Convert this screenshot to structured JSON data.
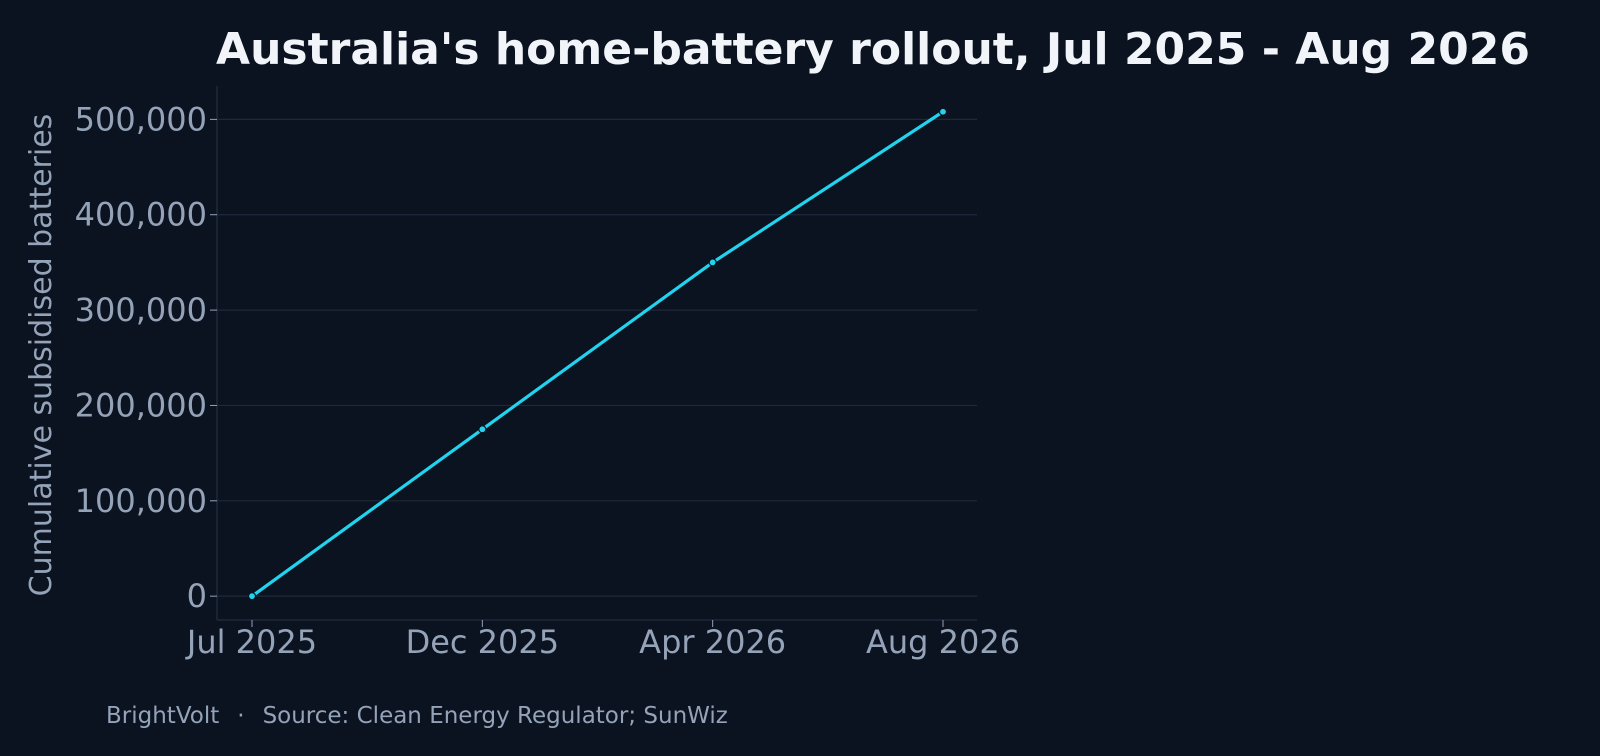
{
  "chart_data": {
    "type": "line",
    "title": "Australia's home-battery rollout, Jul 2025 - Aug 2026",
    "xlabel": "",
    "ylabel": "Cumulative subsidised batteries",
    "x_tick_labels": [
      "Jul 2025",
      "Dec 2025",
      "Apr 2026",
      "Aug 2026"
    ],
    "y_tick_labels": [
      "0",
      "100,000",
      "200,000",
      "300,000",
      "400,000",
      "500,000"
    ],
    "y_ticks": [
      0,
      100000,
      200000,
      300000,
      400000,
      500000
    ],
    "ylim": [
      -25000,
      535000
    ],
    "x": [
      "Jul 2025",
      "Dec 2025",
      "Apr 2026",
      "Aug 2026"
    ],
    "series": [
      {
        "values": [
          0,
          175000,
          350000,
          508000
        ],
        "color": "#22d3ee"
      }
    ],
    "grid": "horizontal",
    "legend": "none"
  },
  "footer": {
    "brand": "BrightVolt",
    "separator": "·",
    "source": "Source: Clean Energy Regulator; SunWiz"
  },
  "colors": {
    "background": "#0b1220",
    "line": "#22d3ee",
    "grid": "#1e293b",
    "text": "#94a3b8",
    "title": "#f1f5f9"
  }
}
